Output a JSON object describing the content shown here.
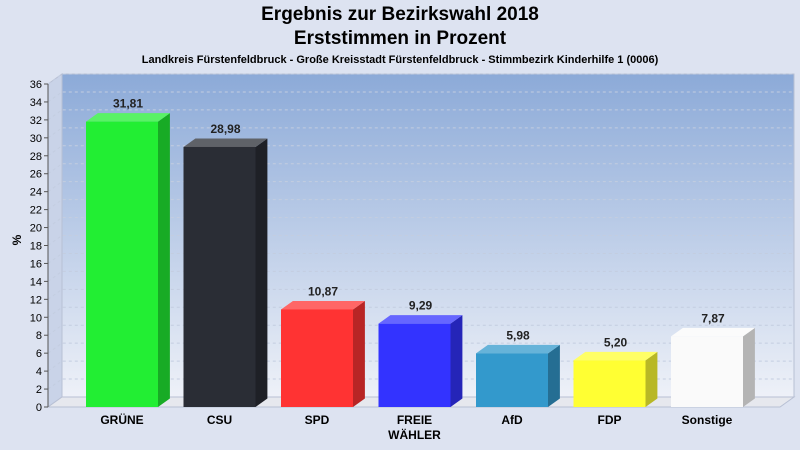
{
  "titles": {
    "line1": "Ergebnis zur Bezirkswahl 2018",
    "line2": "Erststimmen in Prozent",
    "subtitle": "Landkreis Fürstenfeldbruck - Große Kreisstadt Fürstenfeldbruck - Stimmbezirk Kinderhilfe 1 (0006)"
  },
  "chart_data": {
    "type": "bar",
    "title": "Ergebnis zur Bezirkswahl 2018 / Erststimmen in Prozent",
    "subtitle": "Landkreis Fürstenfeldbruck - Große Kreisstadt Fürstenfeldbruck - Stimmbezirk Kinderhilfe 1 (0006)",
    "xlabel": "",
    "ylabel": "%",
    "ylim": [
      0,
      36
    ],
    "yticks": [
      0,
      2,
      4,
      6,
      8,
      10,
      12,
      14,
      16,
      18,
      20,
      22,
      24,
      26,
      28,
      30,
      32,
      34,
      36
    ],
    "grid": true,
    "categories": [
      "GRÜNE",
      "CSU",
      "SPD",
      "FREIE WÄHLER",
      "AfD",
      "FDP",
      "Sonstige"
    ],
    "category_lines": [
      [
        "GRÜNE"
      ],
      [
        "CSU"
      ],
      [
        "SPD"
      ],
      [
        "FREIE",
        "WÄHLER"
      ],
      [
        "AfD"
      ],
      [
        "FDP"
      ],
      [
        "Sonstige"
      ]
    ],
    "values": [
      31.81,
      28.98,
      10.87,
      9.29,
      5.98,
      5.2,
      7.87
    ],
    "value_labels": [
      "31,81",
      "28,98",
      "10,87",
      "9,29",
      "5,98",
      "5,20",
      "7,87"
    ],
    "colors": [
      "#22ee33",
      "#2a2d35",
      "#ff3333",
      "#3333ff",
      "#3399cc",
      "#ffff33",
      "#fafafa"
    ]
  }
}
